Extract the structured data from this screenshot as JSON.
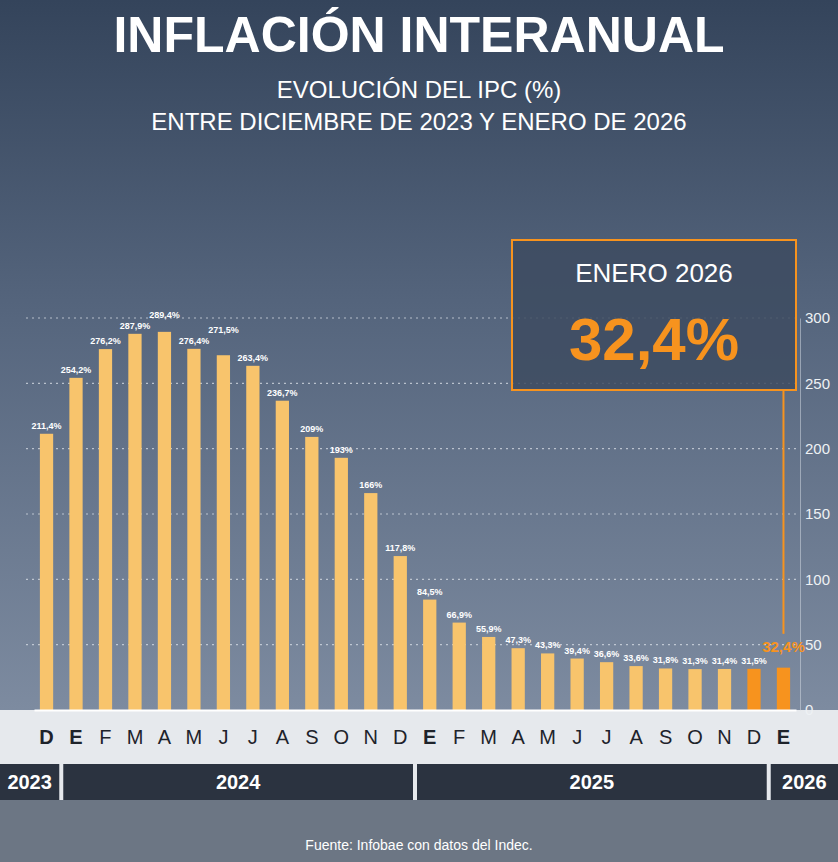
{
  "chart_data": {
    "type": "bar",
    "title": "INFLACIÓN INTERANUAL",
    "subtitle": [
      "EVOLUCIÓN DEL IPC (%)",
      "ENTRE DICIEMBRE DE 2023 Y ENERO DE 2026"
    ],
    "categories": [
      "D",
      "E",
      "F",
      "M",
      "A",
      "M",
      "J",
      "J",
      "A",
      "S",
      "O",
      "N",
      "D",
      "E",
      "F",
      "M",
      "A",
      "M",
      "J",
      "J",
      "A",
      "S",
      "O",
      "N",
      "D",
      "E"
    ],
    "values": [
      211.4,
      254.2,
      276.2,
      287.9,
      289.4,
      276.4,
      271.5,
      263.4,
      236.7,
      209,
      193,
      166,
      117.8,
      84.5,
      66.9,
      55.9,
      47.3,
      43.3,
      39.4,
      36.6,
      33.6,
      31.8,
      31.3,
      31.4,
      31.5,
      32.4
    ],
    "value_labels": [
      "211,4%",
      "254,2%",
      "276,2%",
      "287,9%",
      "289,4%",
      "276,4%",
      "271,5%",
      "263,4%",
      "236,7%",
      "209%",
      "193%",
      "166%",
      "117,8%",
      "84,5%",
      "66,9%",
      "55,9%",
      "47,3%",
      "43,3%",
      "39,4%",
      "36,6%",
      "33,6%",
      "31,8%",
      "31,3%",
      "31,4%",
      "31,5%",
      "32,4%"
    ],
    "colors": [
      "#f8c46c",
      "#f8c46c",
      "#f8c46c",
      "#f8c46c",
      "#f8c46c",
      "#f8c46c",
      "#f8c46c",
      "#f8c46c",
      "#f8c46c",
      "#f8c46c",
      "#f8c46c",
      "#f8c46c",
      "#f8c46c",
      "#f8c46c",
      "#f8c46c",
      "#f8c46c",
      "#f8c46c",
      "#f8c46c",
      "#f8c46c",
      "#f8c46c",
      "#f8c46c",
      "#f8c46c",
      "#f8c46c",
      "#f8c46c",
      "#f7931e",
      "#f7931e"
    ],
    "ylim": [
      0,
      300
    ],
    "yticks": [
      0,
      50,
      100,
      150,
      200,
      250,
      300
    ],
    "grid": true,
    "data_labels": true,
    "year_groups": [
      {
        "label": "2023",
        "count": 1
      },
      {
        "label": "2024",
        "count": 12
      },
      {
        "label": "2025",
        "count": 12
      },
      {
        "label": "2026",
        "count": 1
      }
    ],
    "annotation": {
      "label": "ENERO 2026",
      "value": 32.4,
      "value_label": "32,4%"
    },
    "source": "Fuente: Infobae con datos del Indec."
  }
}
